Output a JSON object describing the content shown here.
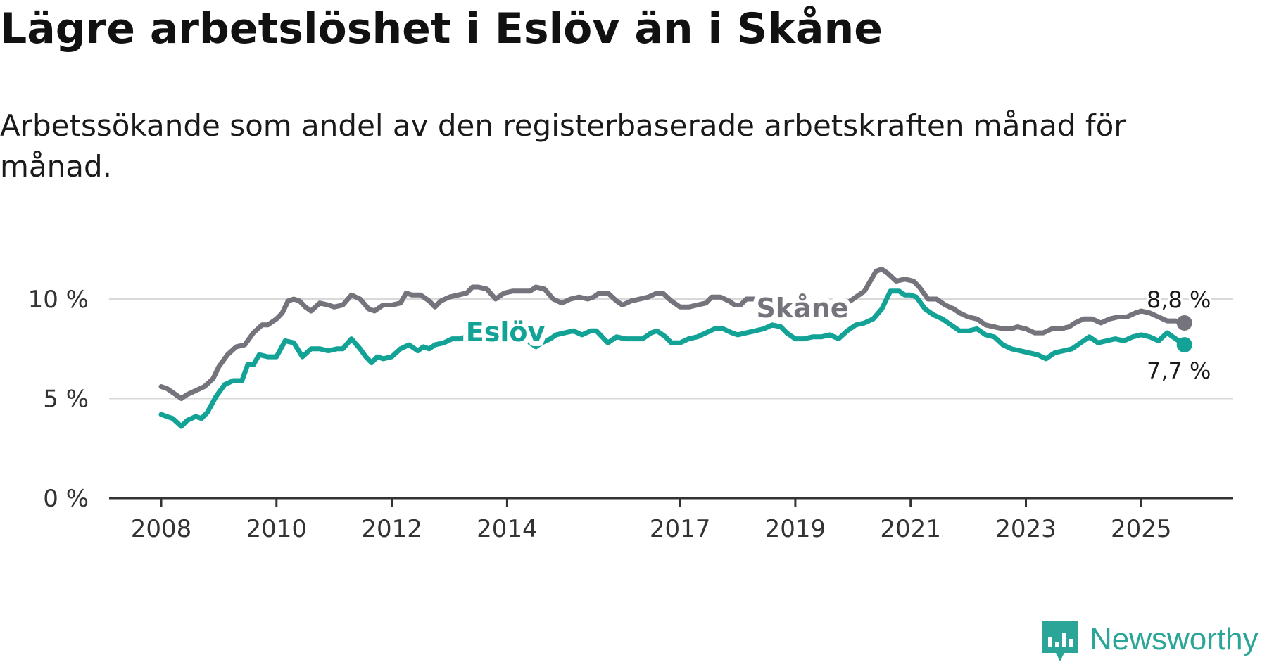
{
  "title": "Lägre arbetslöshet i Eslöv än i Skåne",
  "subtitle": "Arbetssökande som andel av den registerbaserade arbetskraften månad för månad.",
  "brand": {
    "name": "Newsworthy",
    "color": "#2aa597"
  },
  "chart_data": {
    "type": "line",
    "title": "Lägre arbetslöshet i Eslöv än i Skåne",
    "xlabel": "",
    "ylabel": "",
    "y_tick_labels": [
      "0 %",
      "5 %",
      "10 %"
    ],
    "y_ticks": [
      0,
      5,
      10
    ],
    "ylim": [
      0,
      12
    ],
    "x_tick_labels": [
      "2008",
      "2010",
      "2012",
      "2014",
      "2017",
      "2019",
      "2021",
      "2023",
      "2025"
    ],
    "x_ticks": [
      2008.0,
      2010.0,
      2012.0,
      2014.0,
      2017.0,
      2019.0,
      2021.0,
      2023.0,
      2025.0
    ],
    "xlim": [
      2007.1,
      2026.7
    ],
    "grid": true,
    "series": [
      {
        "name": "Skåne",
        "color": "#75737b",
        "end_label": "8,8 %",
        "points": [
          [
            2008.0,
            5.6
          ],
          [
            2008.1,
            5.5
          ],
          [
            2008.25,
            5.2
          ],
          [
            2008.35,
            5.0
          ],
          [
            2008.45,
            5.2
          ],
          [
            2008.6,
            5.4
          ],
          [
            2008.75,
            5.6
          ],
          [
            2008.9,
            6.0
          ],
          [
            2009.0,
            6.6
          ],
          [
            2009.15,
            7.2
          ],
          [
            2009.3,
            7.6
          ],
          [
            2009.45,
            7.7
          ],
          [
            2009.6,
            8.3
          ],
          [
            2009.75,
            8.7
          ],
          [
            2009.85,
            8.7
          ],
          [
            2010.0,
            9.0
          ],
          [
            2010.1,
            9.3
          ],
          [
            2010.2,
            9.9
          ],
          [
            2010.3,
            10.0
          ],
          [
            2010.4,
            9.9
          ],
          [
            2010.5,
            9.6
          ],
          [
            2010.6,
            9.4
          ],
          [
            2010.75,
            9.8
          ],
          [
            2010.9,
            9.7
          ],
          [
            2011.0,
            9.6
          ],
          [
            2011.15,
            9.7
          ],
          [
            2011.3,
            10.2
          ],
          [
            2011.45,
            10.0
          ],
          [
            2011.6,
            9.5
          ],
          [
            2011.7,
            9.4
          ],
          [
            2011.85,
            9.7
          ],
          [
            2012.0,
            9.7
          ],
          [
            2012.15,
            9.8
          ],
          [
            2012.25,
            10.3
          ],
          [
            2012.35,
            10.2
          ],
          [
            2012.5,
            10.2
          ],
          [
            2012.65,
            9.9
          ],
          [
            2012.75,
            9.6
          ],
          [
            2012.85,
            9.9
          ],
          [
            2013.0,
            10.1
          ],
          [
            2013.15,
            10.2
          ],
          [
            2013.3,
            10.3
          ],
          [
            2013.4,
            10.6
          ],
          [
            2013.5,
            10.6
          ],
          [
            2013.65,
            10.5
          ],
          [
            2013.8,
            10.0
          ],
          [
            2013.95,
            10.3
          ],
          [
            2014.1,
            10.4
          ],
          [
            2014.25,
            10.4
          ],
          [
            2014.4,
            10.4
          ],
          [
            2014.5,
            10.6
          ],
          [
            2014.65,
            10.5
          ],
          [
            2014.8,
            10.0
          ],
          [
            2014.95,
            9.8
          ],
          [
            2015.1,
            10.0
          ],
          [
            2015.25,
            10.1
          ],
          [
            2015.4,
            10.0
          ],
          [
            2015.5,
            10.1
          ],
          [
            2015.6,
            10.3
          ],
          [
            2015.75,
            10.3
          ],
          [
            2015.9,
            9.9
          ],
          [
            2016.0,
            9.7
          ],
          [
            2016.15,
            9.9
          ],
          [
            2016.3,
            10.0
          ],
          [
            2016.45,
            10.1
          ],
          [
            2016.6,
            10.3
          ],
          [
            2016.7,
            10.3
          ],
          [
            2016.85,
            9.9
          ],
          [
            2017.0,
            9.6
          ],
          [
            2017.15,
            9.6
          ],
          [
            2017.3,
            9.7
          ],
          [
            2017.45,
            9.8
          ],
          [
            2017.55,
            10.1
          ],
          [
            2017.7,
            10.1
          ],
          [
            2017.85,
            9.9
          ],
          [
            2017.95,
            9.7
          ],
          [
            2018.05,
            9.7
          ],
          [
            2018.15,
            10.0
          ],
          [
            2018.3,
            10.0
          ],
          [
            2018.45,
            10.0
          ],
          [
            2018.6,
            10.0
          ],
          [
            2018.75,
            9.8
          ],
          [
            2018.9,
            9.4
          ],
          [
            2019.0,
            9.3
          ],
          [
            2019.15,
            9.3
          ],
          [
            2019.3,
            9.3
          ],
          [
            2019.45,
            9.5
          ],
          [
            2019.6,
            9.5
          ],
          [
            2019.75,
            9.6
          ],
          [
            2019.9,
            9.8
          ],
          [
            2020.05,
            10.1
          ],
          [
            2020.2,
            10.4
          ],
          [
            2020.3,
            10.9
          ],
          [
            2020.4,
            11.4
          ],
          [
            2020.5,
            11.5
          ],
          [
            2020.6,
            11.3
          ],
          [
            2020.75,
            10.9
          ],
          [
            2020.9,
            11.0
          ],
          [
            2021.05,
            10.9
          ],
          [
            2021.15,
            10.6
          ],
          [
            2021.3,
            10.0
          ],
          [
            2021.45,
            10.0
          ],
          [
            2021.6,
            9.7
          ],
          [
            2021.75,
            9.5
          ],
          [
            2021.85,
            9.3
          ],
          [
            2022.0,
            9.1
          ],
          [
            2022.15,
            9.0
          ],
          [
            2022.3,
            8.7
          ],
          [
            2022.45,
            8.6
          ],
          [
            2022.6,
            8.5
          ],
          [
            2022.75,
            8.5
          ],
          [
            2022.85,
            8.6
          ],
          [
            2023.0,
            8.5
          ],
          [
            2023.15,
            8.3
          ],
          [
            2023.3,
            8.3
          ],
          [
            2023.45,
            8.5
          ],
          [
            2023.6,
            8.5
          ],
          [
            2023.75,
            8.6
          ],
          [
            2023.85,
            8.8
          ],
          [
            2024.0,
            9.0
          ],
          [
            2024.15,
            9.0
          ],
          [
            2024.3,
            8.8
          ],
          [
            2024.45,
            9.0
          ],
          [
            2024.6,
            9.1
          ],
          [
            2024.75,
            9.1
          ],
          [
            2024.9,
            9.3
          ],
          [
            2025.0,
            9.4
          ],
          [
            2025.15,
            9.3
          ],
          [
            2025.3,
            9.1
          ],
          [
            2025.45,
            8.9
          ],
          [
            2025.6,
            8.9
          ],
          [
            2025.75,
            8.8
          ]
        ]
      },
      {
        "name": "Eslöv",
        "color": "#13a396",
        "end_label": "7,7 %",
        "points": [
          [
            2008.0,
            4.2
          ],
          [
            2008.1,
            4.1
          ],
          [
            2008.2,
            4.0
          ],
          [
            2008.35,
            3.6
          ],
          [
            2008.45,
            3.9
          ],
          [
            2008.6,
            4.1
          ],
          [
            2008.7,
            4.0
          ],
          [
            2008.8,
            4.3
          ],
          [
            2008.95,
            5.1
          ],
          [
            2009.1,
            5.7
          ],
          [
            2009.25,
            5.9
          ],
          [
            2009.4,
            5.9
          ],
          [
            2009.5,
            6.7
          ],
          [
            2009.6,
            6.7
          ],
          [
            2009.7,
            7.2
          ],
          [
            2009.85,
            7.1
          ],
          [
            2010.0,
            7.1
          ],
          [
            2010.15,
            7.9
          ],
          [
            2010.3,
            7.8
          ],
          [
            2010.45,
            7.1
          ],
          [
            2010.6,
            7.5
          ],
          [
            2010.75,
            7.5
          ],
          [
            2010.9,
            7.4
          ],
          [
            2011.05,
            7.5
          ],
          [
            2011.15,
            7.5
          ],
          [
            2011.3,
            8.0
          ],
          [
            2011.45,
            7.5
          ],
          [
            2011.55,
            7.1
          ],
          [
            2011.65,
            6.8
          ],
          [
            2011.75,
            7.1
          ],
          [
            2011.85,
            7.0
          ],
          [
            2012.0,
            7.1
          ],
          [
            2012.15,
            7.5
          ],
          [
            2012.3,
            7.7
          ],
          [
            2012.45,
            7.4
          ],
          [
            2012.55,
            7.6
          ],
          [
            2012.65,
            7.5
          ],
          [
            2012.75,
            7.7
          ],
          [
            2012.9,
            7.8
          ],
          [
            2013.05,
            8.0
          ],
          [
            2013.2,
            8.0
          ],
          [
            2013.35,
            8.2
          ],
          [
            2013.5,
            8.2
          ],
          [
            2013.65,
            8.0
          ],
          [
            2013.8,
            8.3
          ],
          [
            2013.95,
            8.3
          ],
          [
            2014.1,
            8.5
          ],
          [
            2014.25,
            8.4
          ],
          [
            2014.4,
            7.8
          ],
          [
            2014.5,
            7.6
          ],
          [
            2014.6,
            7.8
          ],
          [
            2014.75,
            8.0
          ],
          [
            2014.85,
            8.2
          ],
          [
            2015.0,
            8.3
          ],
          [
            2015.15,
            8.4
          ],
          [
            2015.3,
            8.2
          ],
          [
            2015.45,
            8.4
          ],
          [
            2015.55,
            8.4
          ],
          [
            2015.65,
            8.1
          ],
          [
            2015.75,
            7.8
          ],
          [
            2015.9,
            8.1
          ],
          [
            2016.05,
            8.0
          ],
          [
            2016.2,
            8.0
          ],
          [
            2016.35,
            8.0
          ],
          [
            2016.5,
            8.3
          ],
          [
            2016.6,
            8.4
          ],
          [
            2016.75,
            8.1
          ],
          [
            2016.85,
            7.8
          ],
          [
            2017.0,
            7.8
          ],
          [
            2017.15,
            8.0
          ],
          [
            2017.3,
            8.1
          ],
          [
            2017.45,
            8.3
          ],
          [
            2017.6,
            8.5
          ],
          [
            2017.75,
            8.5
          ],
          [
            2017.9,
            8.3
          ],
          [
            2018.0,
            8.2
          ],
          [
            2018.15,
            8.3
          ],
          [
            2018.3,
            8.4
          ],
          [
            2018.45,
            8.5
          ],
          [
            2018.6,
            8.7
          ],
          [
            2018.75,
            8.6
          ],
          [
            2018.85,
            8.3
          ],
          [
            2019.0,
            8.0
          ],
          [
            2019.15,
            8.0
          ],
          [
            2019.3,
            8.1
          ],
          [
            2019.45,
            8.1
          ],
          [
            2019.6,
            8.2
          ],
          [
            2019.75,
            8.0
          ],
          [
            2019.9,
            8.4
          ],
          [
            2020.05,
            8.7
          ],
          [
            2020.2,
            8.8
          ],
          [
            2020.35,
            9.0
          ],
          [
            2020.5,
            9.5
          ],
          [
            2020.65,
            10.4
          ],
          [
            2020.8,
            10.4
          ],
          [
            2020.9,
            10.2
          ],
          [
            2021.0,
            10.2
          ],
          [
            2021.1,
            10.1
          ],
          [
            2021.25,
            9.5
          ],
          [
            2021.4,
            9.2
          ],
          [
            2021.55,
            9.0
          ],
          [
            2021.7,
            8.7
          ],
          [
            2021.85,
            8.4
          ],
          [
            2022.0,
            8.4
          ],
          [
            2022.15,
            8.5
          ],
          [
            2022.3,
            8.2
          ],
          [
            2022.45,
            8.1
          ],
          [
            2022.6,
            7.7
          ],
          [
            2022.75,
            7.5
          ],
          [
            2022.9,
            7.4
          ],
          [
            2023.05,
            7.3
          ],
          [
            2023.2,
            7.2
          ],
          [
            2023.35,
            7.0
          ],
          [
            2023.5,
            7.3
          ],
          [
            2023.65,
            7.4
          ],
          [
            2023.8,
            7.5
          ],
          [
            2023.95,
            7.8
          ],
          [
            2024.1,
            8.1
          ],
          [
            2024.25,
            7.8
          ],
          [
            2024.4,
            7.9
          ],
          [
            2024.55,
            8.0
          ],
          [
            2024.7,
            7.9
          ],
          [
            2024.85,
            8.1
          ],
          [
            2025.0,
            8.2
          ],
          [
            2025.15,
            8.1
          ],
          [
            2025.3,
            7.9
          ],
          [
            2025.45,
            8.3
          ],
          [
            2025.6,
            8.0
          ],
          [
            2025.75,
            7.7
          ]
        ]
      }
    ]
  }
}
